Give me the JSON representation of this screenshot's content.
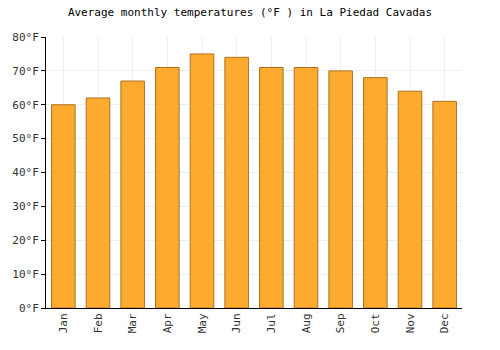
{
  "chart_data": {
    "type": "bar",
    "title": "Average monthly temperatures (°F ) in La Piedad Cavadas",
    "categories": [
      "Jan",
      "Feb",
      "Mar",
      "Apr",
      "May",
      "Jun",
      "Jul",
      "Aug",
      "Sep",
      "Oct",
      "Nov",
      "Dec"
    ],
    "values": [
      60,
      62,
      67,
      71,
      75,
      74,
      71,
      71,
      70,
      68,
      64,
      61
    ],
    "color": "#fdab2e",
    "ylim": [
      0,
      80
    ],
    "yticks": [
      {
        "value": 0,
        "label": "0°F"
      },
      {
        "value": 10,
        "label": "10°F"
      },
      {
        "value": 20,
        "label": "20°F"
      },
      {
        "value": 30,
        "label": "30°F"
      },
      {
        "value": 40,
        "label": "40°F"
      },
      {
        "value": 50,
        "label": "50°F"
      },
      {
        "value": 60,
        "label": "60°F"
      },
      {
        "value": 70,
        "label": "70°F"
      },
      {
        "value": 80,
        "label": "80°F"
      }
    ],
    "grid": true
  }
}
